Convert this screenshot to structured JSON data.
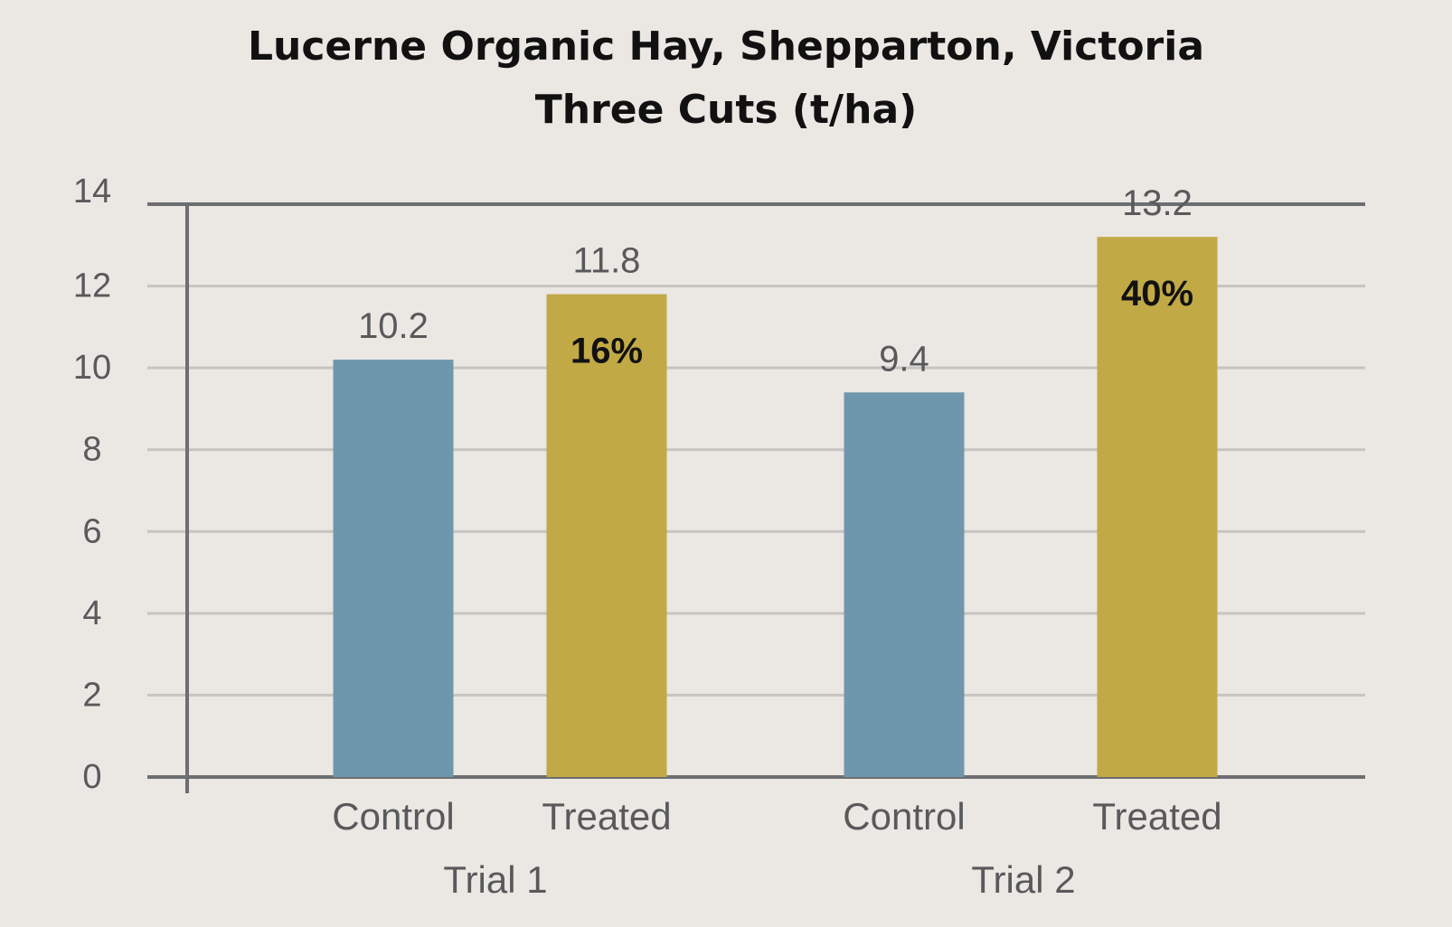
{
  "chart_data": {
    "type": "bar",
    "title": "Lucerne Organic Hay, Shepparton, Victoria",
    "subtitle": "Three Cuts (t/ha)",
    "xlabel": "",
    "ylabel": "",
    "ylim": [
      0,
      14
    ],
    "yticks": [
      "0",
      "2",
      "4",
      "6",
      "8",
      "10",
      "12",
      "14"
    ],
    "grid": true,
    "groups": [
      "Trial 1",
      "Trial 2"
    ],
    "bars": [
      {
        "group": "Trial 1",
        "category": "Control",
        "value": 10.2,
        "label": "10.2",
        "color": "#6e97ad",
        "increase": ""
      },
      {
        "group": "Trial 1",
        "category": "Treated",
        "value": 11.8,
        "label": "11.8",
        "color": "#c1a946",
        "increase": "16%"
      },
      {
        "group": "Trial 2",
        "category": "Control",
        "value": 9.4,
        "label": "9.4",
        "color": "#6e97ad",
        "increase": ""
      },
      {
        "group": "Trial 2",
        "category": "Treated",
        "value": 13.2,
        "label": "13.2",
        "color": "#c1a946",
        "increase": "40%"
      }
    ]
  }
}
